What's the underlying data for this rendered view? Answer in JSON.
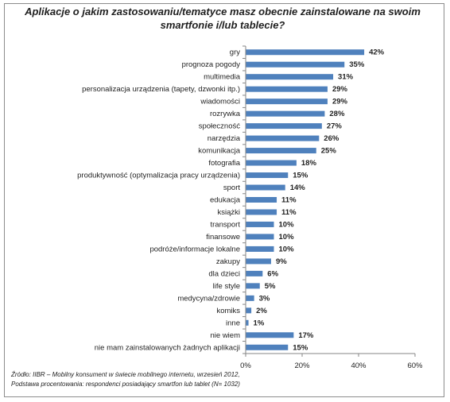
{
  "chart_data": {
    "type": "bar",
    "orientation": "horizontal",
    "title": "Aplikacje o jakim zastosowaniu/tematyce masz obecnie zainstalowane na swoim smartfonie i/lub tablecie?",
    "categories": [
      "gry",
      "prognoza pogody",
      "multimedia",
      "personalizacja urządzenia (tapety, dzwonki itp.)",
      "wiadomości",
      "rozrywka",
      "społeczność",
      "narzędzia",
      "komunikacja",
      "fotografia",
      "produktywność (optymalizacja pracy urządzenia)",
      "sport",
      "edukacja",
      "książki",
      "transport",
      "finansowe",
      "podróże/informacje lokalne",
      "zakupy",
      "dla dzieci",
      "life style",
      "medycyna/zdrowie",
      "komiks",
      "inne",
      "nie wiem",
      "nie mam zainstalowanych żadnych aplikacji"
    ],
    "values": [
      42,
      35,
      31,
      29,
      29,
      28,
      27,
      26,
      25,
      18,
      15,
      14,
      11,
      11,
      10,
      10,
      10,
      9,
      6,
      5,
      3,
      2,
      1,
      17,
      15
    ],
    "value_labels": [
      "42%",
      "35%",
      "31%",
      "29%",
      "29%",
      "28%",
      "27%",
      "26%",
      "25%",
      "18%",
      "15%",
      "14%",
      "11%",
      "11%",
      "10%",
      "10%",
      "10%",
      "9%",
      "6%",
      "5%",
      "3%",
      "2%",
      "1%",
      "17%",
      "15%"
    ],
    "xlim": [
      0,
      60
    ],
    "x_ticks": [
      0,
      20,
      40,
      60
    ],
    "x_tick_labels": [
      "0%",
      "20%",
      "40%",
      "60%"
    ],
    "grid": false,
    "bar_color": "#4f81bd"
  },
  "source": {
    "line1": "Źródło: IIBR – Mobilny konsument w świecie mobilnego internetu, wrzesień 2012,",
    "line2": "Podstawa procentowania: respondenci posiadający smartfon lub tablet (N= 1032)"
  }
}
